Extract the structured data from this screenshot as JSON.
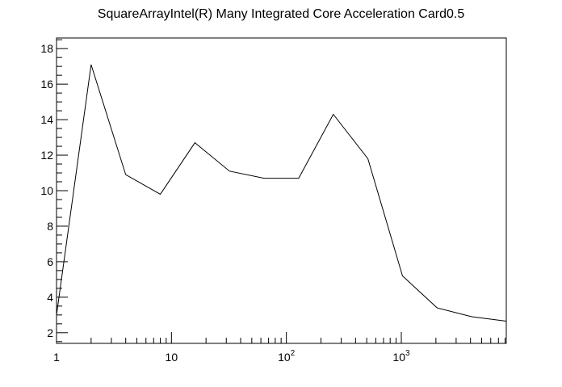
{
  "chart_data": {
    "type": "line",
    "title": "SquareArrayIntel(R) Many Integrated Core Acceleration Card0.5",
    "xlabel": "",
    "ylabel": "",
    "x_scale": "log",
    "xlim": [
      1,
      8192
    ],
    "ylim": [
      1.4,
      18.6
    ],
    "grid": false,
    "line_color": "#000000",
    "x_tick_labels": [
      {
        "value": 1,
        "base": "1",
        "exp": ""
      },
      {
        "value": 10,
        "base": "10",
        "exp": ""
      },
      {
        "value": 100,
        "base": "10",
        "exp": "2"
      },
      {
        "value": 1000,
        "base": "10",
        "exp": "3"
      }
    ],
    "y_ticks": [
      2,
      4,
      6,
      8,
      10,
      12,
      14,
      16,
      18
    ],
    "series": [
      {
        "x": [
          1,
          2,
          4,
          8,
          16,
          32,
          64,
          128,
          256,
          512,
          1024,
          2048,
          4096,
          8192
        ],
        "y": [
          3.0,
          17.1,
          10.9,
          9.8,
          12.7,
          11.1,
          10.7,
          10.7,
          14.3,
          11.8,
          5.2,
          3.4,
          2.9,
          2.65
        ]
      }
    ]
  }
}
